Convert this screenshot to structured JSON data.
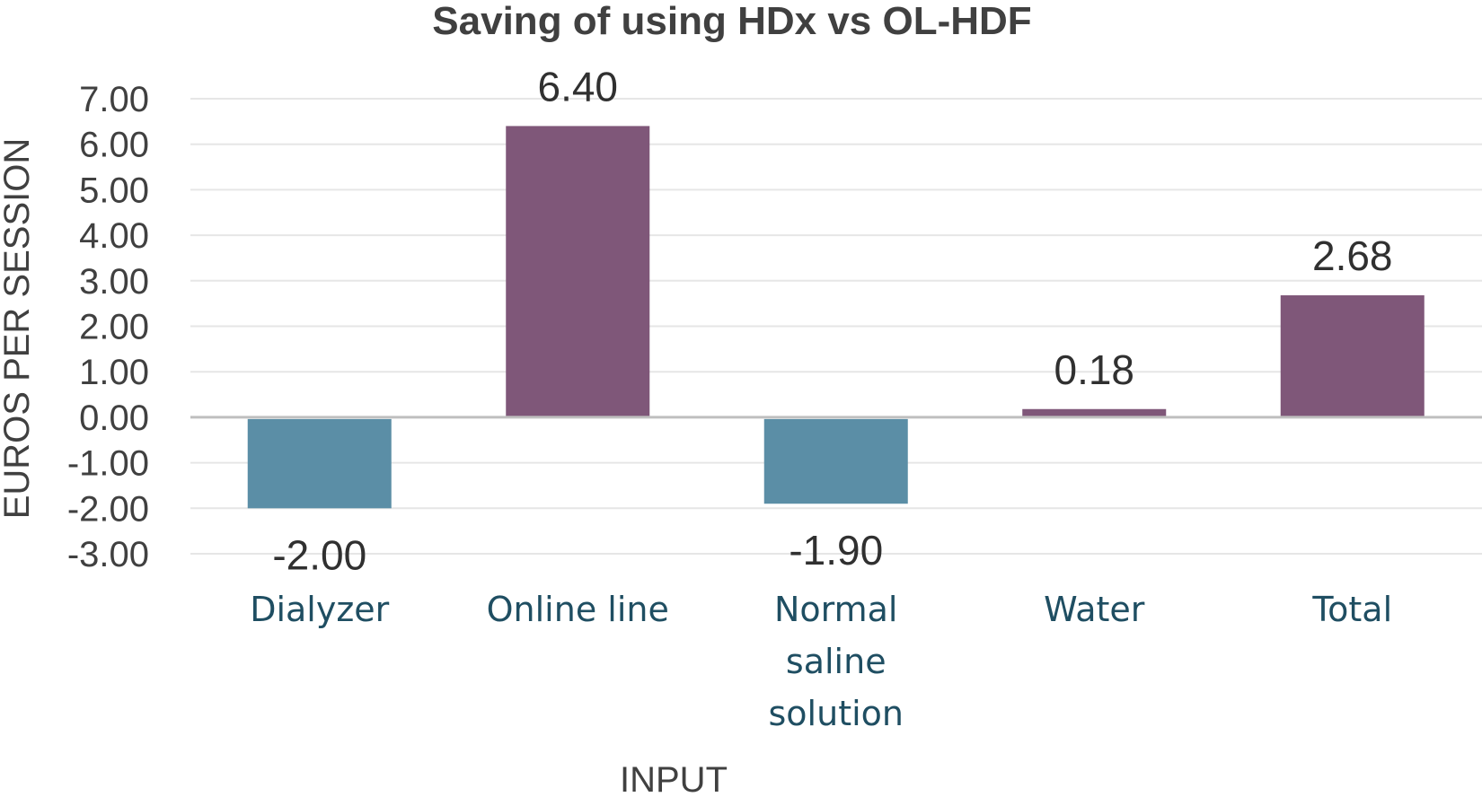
{
  "chart_data": {
    "type": "bar",
    "title": "Saving of using HDx vs OL-HDF",
    "xlabel": "INPUT",
    "ylabel": "EUROS PER SESSION",
    "categories": [
      [
        "Dialyzer"
      ],
      [
        "Online line"
      ],
      [
        "Normal",
        "saline",
        "solution"
      ],
      [
        "Water"
      ],
      [
        "Total"
      ]
    ],
    "values": [
      -2.0,
      6.4,
      -1.9,
      0.18,
      2.68
    ],
    "data_labels": [
      "-2.00",
      "6.40",
      "-1.90",
      "0.18",
      "2.68"
    ],
    "yticks": [
      "-3.00",
      "-2.00",
      "-1.00",
      "0.00",
      "1.00",
      "2.00",
      "3.00",
      "4.00",
      "5.00",
      "6.00",
      "7.00"
    ],
    "ylim": [
      -3,
      7
    ],
    "grid": true,
    "legend": "none",
    "colors": {
      "positive": "#7f5779",
      "negative": "#5b8ea6",
      "gridline": "#e6e6e6",
      "zero_line": "#bfbfbf",
      "category_text": "#1f4e62"
    }
  }
}
